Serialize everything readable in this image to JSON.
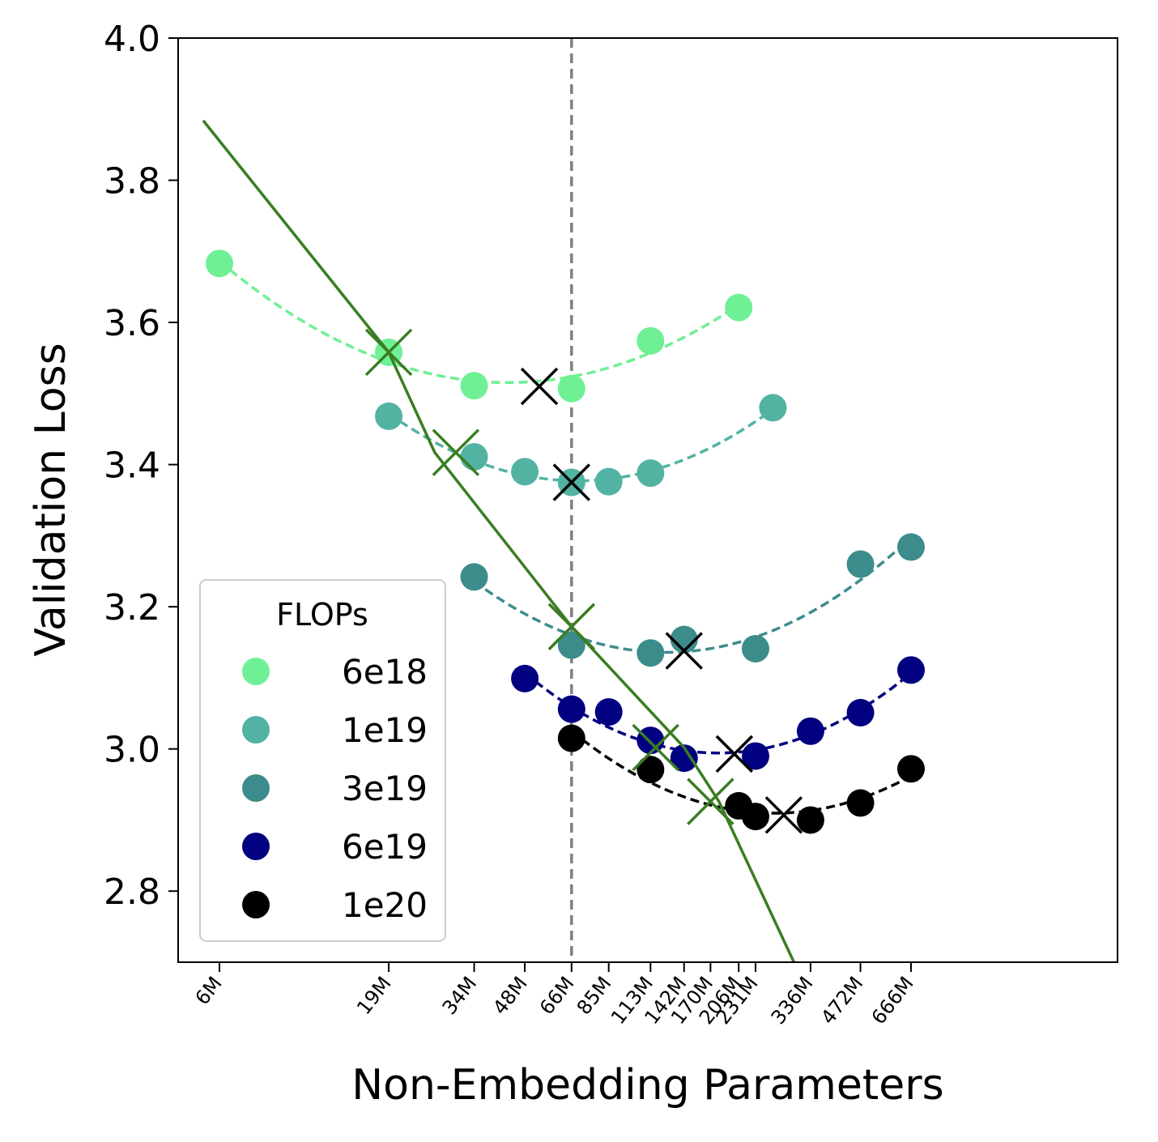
{
  "chart_data": {
    "type": "scatter",
    "title": "",
    "xlabel": "Non-Embedding Parameters",
    "ylabel": "Validation Loss",
    "xscale": "log",
    "ylim": [
      2.7,
      4.0
    ],
    "yticks": [
      "2.8",
      "3.0",
      "3.2",
      "3.4",
      "3.6",
      "3.8",
      "4.0"
    ],
    "ytick_values": [
      2.8,
      3.0,
      3.2,
      3.4,
      3.6,
      3.8,
      4.0
    ],
    "xticks": [
      {
        "label": "6M",
        "value": 6
      },
      {
        "label": "19M",
        "value": 19
      },
      {
        "label": "34M",
        "value": 34
      },
      {
        "label": "48M",
        "value": 48
      },
      {
        "label": "66M",
        "value": 66
      },
      {
        "label": "85M",
        "value": 85
      },
      {
        "label": "113M",
        "value": 113
      },
      {
        "label": "142M",
        "value": 142
      },
      {
        "label": "170M",
        "value": 170
      },
      {
        "label": "206M",
        "value": 206
      },
      {
        "label": "231M",
        "value": 231
      },
      {
        "label": "336M",
        "value": 336
      },
      {
        "label": "472M",
        "value": 472
      },
      {
        "label": "666M",
        "value": 666
      }
    ],
    "legend": {
      "title": "FLOPs",
      "position": "lower-left"
    },
    "vline_x": 66,
    "series": [
      {
        "name": "6e18",
        "color": "#6ff095",
        "points": [
          [
            6,
            3.683
          ],
          [
            19,
            3.558
          ],
          [
            34,
            3.511
          ],
          [
            66,
            3.507
          ],
          [
            113,
            3.574
          ],
          [
            206,
            3.621
          ]
        ],
        "optimum": [
          53,
          3.51
        ]
      },
      {
        "name": "1e19",
        "color": "#52b3a3",
        "points": [
          [
            19,
            3.468
          ],
          [
            34,
            3.411
          ],
          [
            48,
            3.39
          ],
          [
            66,
            3.375
          ],
          [
            85,
            3.376
          ],
          [
            113,
            3.388
          ],
          [
            260,
            3.48
          ]
        ],
        "optimum": [
          66,
          3.375
        ]
      },
      {
        "name": "3e19",
        "color": "#3d8c8c",
        "points": [
          [
            34,
            3.242
          ],
          [
            66,
            3.146
          ],
          [
            113,
            3.135
          ],
          [
            142,
            3.154
          ],
          [
            231,
            3.141
          ],
          [
            472,
            3.26
          ],
          [
            666,
            3.284
          ]
        ],
        "optimum": [
          142,
          3.138
        ]
      },
      {
        "name": "6e19",
        "color": "#000080",
        "points": [
          [
            48,
            3.099
          ],
          [
            66,
            3.056
          ],
          [
            85,
            3.052
          ],
          [
            113,
            3.012
          ],
          [
            142,
            2.987
          ],
          [
            231,
            2.99
          ],
          [
            336,
            3.025
          ],
          [
            472,
            3.051
          ],
          [
            666,
            3.111
          ]
        ],
        "optimum": [
          200,
          2.993
        ]
      },
      {
        "name": "1e20",
        "color": "#000000",
        "points": [
          [
            66,
            3.015
          ],
          [
            113,
            2.971
          ],
          [
            206,
            2.92
          ],
          [
            231,
            2.905
          ],
          [
            336,
            2.9
          ],
          [
            472,
            2.924
          ],
          [
            666,
            2.972
          ]
        ],
        "optimum": [
          280,
          2.907
        ]
      }
    ],
    "fit_line": {
      "color": "#3a7d22",
      "points": [
        [
          5.37,
          3.884
        ],
        [
          19,
          3.558
        ],
        [
          26,
          3.417
        ],
        [
          66,
          3.172
        ],
        [
          142,
          3.002
        ],
        [
          180,
          2.926
        ],
        [
          300,
          2.7
        ]
      ]
    },
    "frontier_markers": [
      [
        19,
        3.558
      ],
      [
        30,
        3.417
      ],
      [
        66,
        3.172
      ],
      [
        117,
        3.002
      ],
      [
        170,
        2.926
      ]
    ]
  }
}
